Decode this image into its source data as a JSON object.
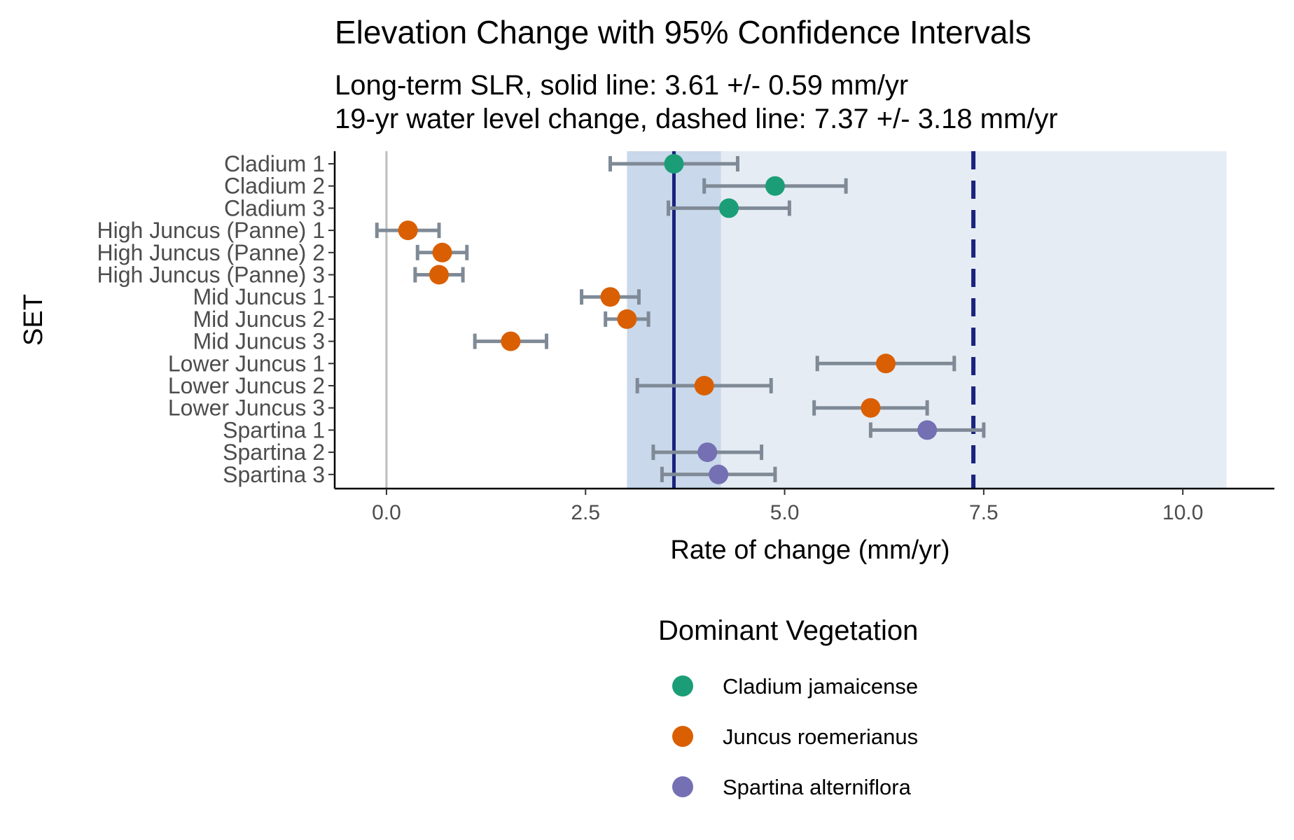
{
  "chart_data": {
    "type": "scatter",
    "title": "Elevation Change with 95% Confidence Intervals",
    "subtitle_lines": [
      "Long-term SLR, solid line: 3.61 +/- 0.59 mm/yr",
      "19-yr water level change, dashed line: 7.37 +/- 3.18 mm/yr"
    ],
    "xlabel": "Rate of change (mm/yr)",
    "ylabel": "SET",
    "xlim": [
      -0.65,
      11.15
    ],
    "xticks": [
      0.0,
      2.5,
      5.0,
      7.5,
      10.0
    ],
    "xtick_labels": [
      "0.0",
      "2.5",
      "5.0",
      "7.5",
      "10.0"
    ],
    "reference_lines": {
      "zero": 0,
      "long_term_slr": {
        "value": 3.61,
        "ci": 0.59,
        "style": "solid"
      },
      "water_level_change": {
        "value": 7.37,
        "ci": 3.18,
        "style": "dashed"
      }
    },
    "points": [
      {
        "set": "Cladium 1",
        "group": "Cladium jamaicense",
        "value": 3.61,
        "lower": 2.81,
        "upper": 4.41
      },
      {
        "set": "Cladium 2",
        "group": "Cladium jamaicense",
        "value": 4.88,
        "lower": 3.99,
        "upper": 5.77
      },
      {
        "set": "Cladium 3",
        "group": "Cladium jamaicense",
        "value": 4.3,
        "lower": 3.54,
        "upper": 5.06
      },
      {
        "set": "High Juncus (Panne) 1",
        "group": "Juncus roemerianus",
        "value": 0.27,
        "lower": -0.12,
        "upper": 0.66
      },
      {
        "set": "High Juncus (Panne) 2",
        "group": "Juncus roemerianus",
        "value": 0.7,
        "lower": 0.39,
        "upper": 1.01
      },
      {
        "set": "High Juncus (Panne) 3",
        "group": "Juncus roemerianus",
        "value": 0.66,
        "lower": 0.36,
        "upper": 0.96
      },
      {
        "set": "Mid Juncus 1",
        "group": "Juncus roemerianus",
        "value": 2.81,
        "lower": 2.45,
        "upper": 3.17
      },
      {
        "set": "Mid Juncus 2",
        "group": "Juncus roemerianus",
        "value": 3.02,
        "lower": 2.75,
        "upper": 3.29
      },
      {
        "set": "Mid Juncus 3",
        "group": "Juncus roemerianus",
        "value": 1.56,
        "lower": 1.11,
        "upper": 2.01
      },
      {
        "set": "Lower Juncus 1",
        "group": "Juncus roemerianus",
        "value": 6.27,
        "lower": 5.41,
        "upper": 7.13
      },
      {
        "set": "Lower Juncus 2",
        "group": "Juncus roemerianus",
        "value": 3.99,
        "lower": 3.15,
        "upper": 4.83
      },
      {
        "set": "Lower Juncus 3",
        "group": "Juncus roemerianus",
        "value": 6.08,
        "lower": 5.37,
        "upper": 6.79
      },
      {
        "set": "Spartina 1",
        "group": "Spartina alterniflora",
        "value": 6.79,
        "lower": 6.08,
        "upper": 7.5
      },
      {
        "set": "Spartina 2",
        "group": "Spartina alterniflora",
        "value": 4.03,
        "lower": 3.35,
        "upper": 4.71
      },
      {
        "set": "Spartina 3",
        "group": "Spartina alterniflora",
        "value": 4.17,
        "lower": 3.46,
        "upper": 4.88
      }
    ],
    "legend": {
      "title": "Dominant Vegetation",
      "position": "bottom",
      "items": [
        {
          "label": "Cladium jamaicense",
          "color": "#1b9e77"
        },
        {
          "label": "Juncus roemerianus",
          "color": "#d95f02"
        },
        {
          "label": "Spartina alterniflora",
          "color": "#7570b3"
        }
      ]
    },
    "colors": {
      "errorbar": "#7f8a96",
      "slr_line": "#1a237e",
      "slr_band": "#c9d8ea",
      "water_band": "#e6ecf4",
      "zero_line": "#bdbdbd",
      "axis": "#000000"
    }
  }
}
